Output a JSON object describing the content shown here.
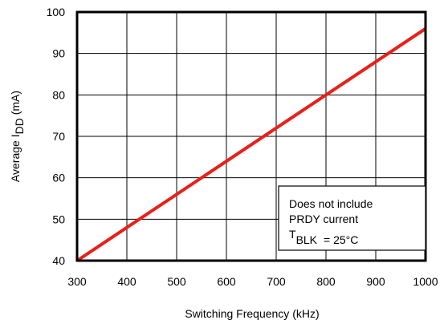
{
  "chart_data": {
    "type": "line",
    "title": "",
    "xlabel": "Switching Frequency (kHz)",
    "ylabel": {
      "prefix": "Average I",
      "subscript": "DD",
      "suffix": " (mA)"
    },
    "xlim": [
      300,
      1000
    ],
    "ylim": [
      40,
      100
    ],
    "x_ticks": [
      300,
      400,
      500,
      600,
      700,
      800,
      900,
      1000
    ],
    "y_ticks": [
      40,
      50,
      60,
      70,
      80,
      90,
      100
    ],
    "grid": true,
    "series": [
      {
        "color": "#e8201a",
        "x": [
          300,
          1000
        ],
        "y": [
          40,
          96
        ]
      }
    ],
    "annotation": {
      "lines": [
        "Does not include",
        "PRDY current"
      ],
      "temperature": {
        "symbol": "T",
        "subscript": "BLK",
        "value": "= 25°C"
      },
      "placement": "bottom-right"
    }
  }
}
